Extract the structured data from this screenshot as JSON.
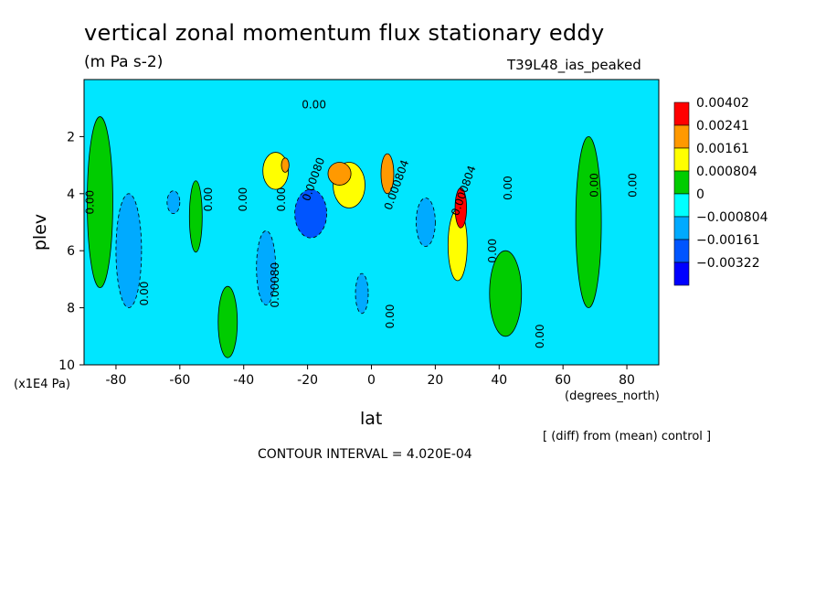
{
  "chart_data": {
    "type": "heatmap",
    "title": "vertical zonal momentum flux stationary eddy",
    "subtitle": "(m Pa s-2)",
    "run_label": "T39L48_ias_peaked",
    "xlabel": "lat",
    "xunit": "(degrees_north)",
    "ylabel": "plev",
    "yunit": "(x1E4 Pa)",
    "note": "[ (diff) from (mean) control ]",
    "contour_interval_text": "CONTOUR INTERVAL = 4.020E-04",
    "xlim": [
      -90,
      90
    ],
    "ylim": [
      10,
      0
    ],
    "xticks": [
      "-80",
      "-60",
      "-40",
      "-20",
      "0",
      "20",
      "40",
      "60",
      "80"
    ],
    "xtick_values": [
      -80,
      -60,
      -40,
      -20,
      0,
      20,
      40,
      60,
      80
    ],
    "yticks": [
      "2",
      "4",
      "6",
      "8",
      "10"
    ],
    "ytick_values": [
      2,
      4,
      6,
      8,
      10
    ],
    "legend": {
      "placement": "right",
      "levels": [
        "0.00402",
        "0.00241",
        "0.00161",
        "0.000804",
        "0",
        "−0.000804",
        "−0.00161",
        "−0.00322"
      ],
      "colors": [
        "#ff0000",
        "#ff9900",
        "#ffff00",
        "#00cc00",
        "#00ffff",
        "#00aaff",
        "#0055ff",
        "#0000ff"
      ]
    },
    "background_color": "#00e6ff",
    "features": [
      {
        "lat": -85,
        "plev": 4.3,
        "value": 0.0004,
        "w": 4,
        "h": 6
      },
      {
        "lat": -76,
        "plev": 6,
        "value": -0.0005,
        "w": 4,
        "h": 4
      },
      {
        "lat": -62,
        "plev": 4.3,
        "value": -0.0012,
        "w": 2,
        "h": 0.8
      },
      {
        "lat": -55,
        "plev": 4.8,
        "value": 0.0004,
        "w": 2,
        "h": 2.5
      },
      {
        "lat": -45,
        "plev": 8.5,
        "value": 0.0004,
        "w": 3,
        "h": 2.5
      },
      {
        "lat": -33,
        "plev": 6.6,
        "value": -0.0012,
        "w": 3,
        "h": 2.6
      },
      {
        "lat": -30,
        "plev": 3.2,
        "value": 0.0022,
        "w": 4,
        "h": 1.3
      },
      {
        "lat": -27,
        "plev": 3,
        "value": 0.003,
        "w": 1.2,
        "h": 0.5
      },
      {
        "lat": -19,
        "plev": 4.7,
        "value": -0.003,
        "w": 5,
        "h": 1.7
      },
      {
        "lat": -10,
        "plev": 3.3,
        "value": 0.004,
        "w": 3.6,
        "h": 0.8
      },
      {
        "lat": -7,
        "plev": 3.7,
        "value": 0.002,
        "w": 5,
        "h": 1.6
      },
      {
        "lat": -3,
        "plev": 7.5,
        "value": -0.0012,
        "w": 2,
        "h": 1.4
      },
      {
        "lat": 5,
        "plev": 3.3,
        "value": 0.0035,
        "w": 2,
        "h": 1.4
      },
      {
        "lat": 17,
        "plev": 5,
        "value": -0.0015,
        "w": 3,
        "h": 1.7
      },
      {
        "lat": 28,
        "plev": 4.5,
        "value": 0.0045,
        "w": 1.8,
        "h": 1.4
      },
      {
        "lat": 27,
        "plev": 5.8,
        "value": 0.0018,
        "w": 3,
        "h": 2.5
      },
      {
        "lat": 42,
        "plev": 7.5,
        "value": 0.0004,
        "w": 5,
        "h": 3
      },
      {
        "lat": 68,
        "plev": 5,
        "value": 0.0004,
        "w": 4,
        "h": 6
      }
    ],
    "contour_labels": [
      {
        "text": "0.00",
        "lat": -88,
        "plev": 4.3,
        "rot": -90
      },
      {
        "text": "0.00",
        "lat": -71,
        "plev": 7.5,
        "rot": -90
      },
      {
        "text": "0.00",
        "lat": -51,
        "plev": 4.2,
        "rot": -90
      },
      {
        "text": "0.00",
        "lat": -40,
        "plev": 4.2,
        "rot": -90
      },
      {
        "text": "0.00",
        "lat": -28,
        "plev": 4.2,
        "rot": -90
      },
      {
        "text": "0.00080",
        "lat": -30,
        "plev": 7.2,
        "rot": -90
      },
      {
        "text": "0.00080",
        "lat": -18,
        "plev": 3.5,
        "rot": -70
      },
      {
        "text": "0.00",
        "lat": -18,
        "plev": 0.9,
        "rot": 0
      },
      {
        "text": "0.00",
        "lat": 6,
        "plev": 8.3,
        "rot": -90
      },
      {
        "text": "0.000804",
        "lat": 8,
        "plev": 3.7,
        "rot": -70
      },
      {
        "text": "0.000804",
        "lat": 29,
        "plev": 3.9,
        "rot": -70
      },
      {
        "text": "0.00",
        "lat": 38,
        "plev": 6,
        "rot": -90
      },
      {
        "text": "0.00",
        "lat": 43,
        "plev": 3.8,
        "rot": -90
      },
      {
        "text": "0.00",
        "lat": 53,
        "plev": 9.0,
        "rot": -90
      },
      {
        "text": "0.00",
        "lat": 70,
        "plev": 3.7,
        "rot": -90
      },
      {
        "text": "0.00",
        "lat": 82,
        "plev": 3.7,
        "rot": -90
      }
    ]
  }
}
